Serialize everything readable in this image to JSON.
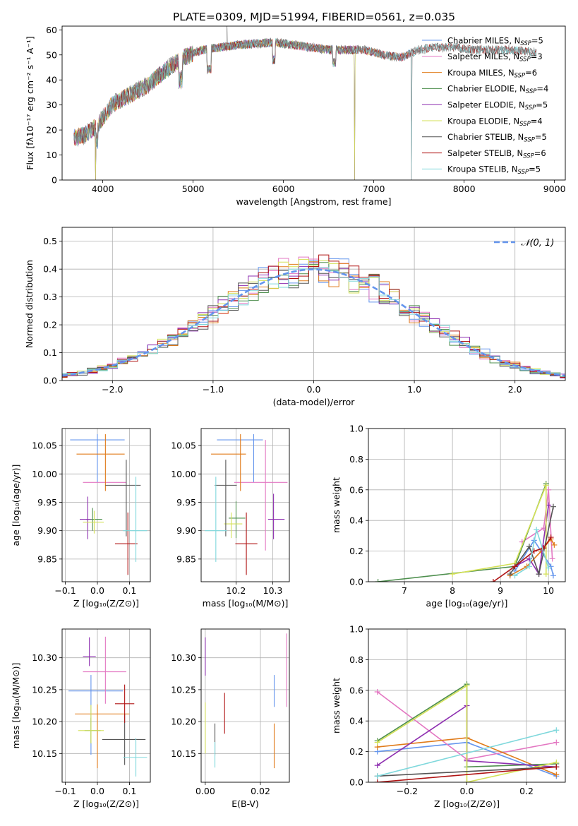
{
  "title": "PLATE=0309, MJD=51994, FIBERID=0561, z=0.035",
  "colors": {
    "Chabrier MILES": "#6495ed",
    "Salpeter MILES": "#e377c2",
    "Kroupa MILES": "#e07b1a",
    "Chabrier ELODIE": "#4e8f4e",
    "Salpeter ELODIE": "#8e2fb0",
    "Kroupa ELODIE": "#d4e157",
    "Chabrier STELIB": "#555555",
    "Salpeter STELIB": "#b01414",
    "Kroupa STELIB": "#7fd8dc"
  },
  "legend_spectrum": [
    {
      "label": "Chabrier MILES, N",
      "sub": "SSP",
      "suffix": "=5",
      "color": "#6495ed"
    },
    {
      "label": "Salpeter MILES, N",
      "sub": "SSP",
      "suffix": "=3",
      "color": "#e377c2"
    },
    {
      "label": "Kroupa MILES, N",
      "sub": "SSP",
      "suffix": "=6",
      "color": "#e07b1a"
    },
    {
      "label": "Chabrier ELODIE, N",
      "sub": "SSP",
      "suffix": "=4",
      "color": "#4e8f4e"
    },
    {
      "label": "Salpeter ELODIE, N",
      "sub": "SSP",
      "suffix": "=5",
      "color": "#8e2fb0"
    },
    {
      "label": "Kroupa ELODIE, N",
      "sub": "SSP",
      "suffix": "=4",
      "color": "#d4e157"
    },
    {
      "label": "Chabrier STELIB, N",
      "sub": "SSP",
      "suffix": "=5",
      "color": "#555555"
    },
    {
      "label": "Salpeter STELIB, N",
      "sub": "SSP",
      "suffix": "=6",
      "color": "#b01414"
    },
    {
      "label": "Kroupa STELIB, N",
      "sub": "SSP",
      "suffix": "=5",
      "color": "#7fd8dc"
    }
  ],
  "chart_data": [
    {
      "id": "spectrum",
      "type": "line",
      "xlabel": "wavelength [Angstrom, rest frame]",
      "ylabel": "Flux [fλ10⁻¹⁷ erg cm⁻² s⁻¹ A⁻¹]",
      "xlim": [
        3550,
        9120
      ],
      "ylim": [
        0,
        61.5
      ],
      "xticks": [
        4000,
        5000,
        6000,
        7000,
        8000,
        9000
      ],
      "yticks": [
        0,
        10,
        20,
        30,
        40,
        50,
        60
      ],
      "continuum_x": [
        3680,
        3800,
        3950,
        4100,
        4300,
        4500,
        4700,
        4900,
        5100,
        5300,
        5500,
        5700,
        5900,
        6100,
        6300,
        6500,
        6700,
        6900,
        7100,
        7300,
        7500,
        7700,
        7900,
        8100,
        8300,
        8500,
        8800
      ],
      "continuum_y": [
        17,
        18,
        22,
        30,
        34,
        38,
        44,
        49,
        52,
        53,
        54,
        54.5,
        55,
        54,
        53,
        52,
        52,
        52,
        50,
        49,
        52,
        53,
        53,
        52,
        52,
        52,
        51
      ],
      "drops_x": [
        3920,
        6790,
        7420
      ],
      "legend_loc": "upper right"
    },
    {
      "id": "residuals",
      "type": "line",
      "xlabel": "(data-model)/error",
      "ylabel": "Normed distribution",
      "xlim": [
        -2.5,
        2.5
      ],
      "ylim": [
        0,
        0.55
      ],
      "xticks": [
        -2,
        -1,
        0,
        1,
        2
      ],
      "yticks": [
        0.0,
        0.1,
        0.2,
        0.3,
        0.4,
        0.5
      ],
      "gaussian_label": "𝒩(0, 1)",
      "bin_width": 0.1,
      "legend_loc": "upper right"
    },
    {
      "id": "age-vs-Z",
      "type": "scatter",
      "xlabel": "Z [log₁₀(Z/Z⊙)]",
      "ylabel": "age  [log₁₀(age/yr)]",
      "xlim": [
        -0.11,
        0.165
      ],
      "ylim": [
        9.81,
        10.08
      ],
      "xticks": [
        -0.1,
        0.0,
        0.1
      ],
      "yticks": [
        9.85,
        9.9,
        9.95,
        10.0,
        10.05
      ],
      "series": [
        {
          "name": "Chabrier MILES",
          "x": 0.0,
          "y": 10.06,
          "xerr": [
            0.085,
            0.085
          ],
          "yerr": [
            0.075,
            0.01
          ]
        },
        {
          "name": "Salpeter MILES",
          "x": 0.045,
          "y": 9.985,
          "xerr": [
            0.09,
            0.045
          ],
          "yerr": [
            0.0,
            0.0
          ]
        },
        {
          "name": "Kroupa MILES",
          "x": 0.025,
          "y": 10.035,
          "xerr": [
            0.09,
            0.06
          ],
          "yerr": [
            0.065,
            0.035
          ]
        },
        {
          "name": "Chabrier ELODIE",
          "x": -0.015,
          "y": 9.92,
          "xerr": [
            0.02,
            0.03
          ],
          "yerr": [
            0.02,
            0.02
          ]
        },
        {
          "name": "Salpeter ELODIE",
          "x": -0.03,
          "y": 9.92,
          "xerr": [
            0.025,
            0.01
          ],
          "yerr": [
            0.035,
            0.04
          ]
        },
        {
          "name": "Kroupa ELODIE",
          "x": -0.01,
          "y": 9.915,
          "xerr": [
            0.035,
            0.03
          ],
          "yerr": [
            0.02,
            0.02
          ]
        },
        {
          "name": "Chabrier STELIB",
          "x": 0.09,
          "y": 9.98,
          "xerr": [
            0.065,
            0.045
          ],
          "yerr": [
            0.09,
            0.045
          ]
        },
        {
          "name": "Salpeter STELIB",
          "x": 0.095,
          "y": 9.877,
          "xerr": [
            0.04,
            0.03
          ],
          "yerr": [
            0.055,
            0.055
          ]
        },
        {
          "name": "Kroupa STELIB",
          "x": 0.12,
          "y": 9.9,
          "xerr": [
            0.04,
            0.035
          ],
          "yerr": [
            0.055,
            0.095
          ]
        }
      ]
    },
    {
      "id": "age-vs-mass",
      "type": "scatter",
      "xlabel": "mass [log₁₀(M/M⊙)]",
      "ylabel": "",
      "xlim": [
        10.105,
        10.345
      ],
      "ylim": [
        9.81,
        10.08
      ],
      "xticks": [
        10.2,
        10.3
      ],
      "yticks": [
        9.85,
        9.9,
        9.95,
        10.0,
        10.05
      ],
      "series": [
        {
          "name": "Chabrier MILES",
          "x": 10.248,
          "y": 10.06,
          "xerr": [
            0.1,
            0.025
          ],
          "yerr": [
            0.075,
            0.01
          ]
        },
        {
          "name": "Salpeter MILES",
          "x": 10.28,
          "y": 9.985,
          "xerr": [
            0.085,
            0.06
          ],
          "yerr": [
            0.12,
            0.075
          ]
        },
        {
          "name": "Kroupa MILES",
          "x": 10.212,
          "y": 10.035,
          "xerr": [
            0.08,
            0.015
          ],
          "yerr": [
            0.065,
            0.035
          ]
        },
        {
          "name": "Chabrier ELODIE",
          "x": 10.2,
          "y": 9.922,
          "xerr": [
            0.02,
            0.025
          ],
          "yerr": [
            0.035,
            0.03
          ]
        },
        {
          "name": "Salpeter ELODIE",
          "x": 10.302,
          "y": 9.92,
          "xerr": [
            0.015,
            0.03
          ],
          "yerr": [
            0.035,
            0.045
          ]
        },
        {
          "name": "Kroupa ELODIE",
          "x": 10.187,
          "y": 9.912,
          "xerr": [
            0.02,
            0.03
          ],
          "yerr": [
            0.025,
            0.02
          ]
        },
        {
          "name": "Chabrier STELIB",
          "x": 10.172,
          "y": 9.98,
          "xerr": [
            0.03,
            0.03
          ],
          "yerr": [
            0.09,
            0.045
          ]
        },
        {
          "name": "Salpeter STELIB",
          "x": 10.228,
          "y": 9.877,
          "xerr": [
            0.03,
            0.03
          ],
          "yerr": [
            0.055,
            0.055
          ]
        },
        {
          "name": "Kroupa STELIB",
          "x": 10.145,
          "y": 9.9,
          "xerr": [
            0.03,
            0.03
          ],
          "yerr": [
            0.055,
            0.095
          ]
        }
      ]
    },
    {
      "id": "weight-vs-age",
      "type": "line",
      "xlabel": "age  [log₁₀(age/yr)]",
      "ylabel": "mass weight",
      "xlim": [
        6.25,
        10.35
      ],
      "ylim": [
        0,
        1.0
      ],
      "xticks": [
        7,
        8,
        9,
        10
      ],
      "yticks": [
        0.0,
        0.2,
        0.4,
        0.6,
        0.8,
        1.0
      ],
      "series": [
        {
          "name": "Chabrier MILES",
          "x": [
            9.3,
            9.7,
            10.05,
            10.1
          ],
          "y": [
            0.07,
            0.27,
            0.1,
            0.04
          ]
        },
        {
          "name": "Salpeter MILES",
          "x": [
            9.45,
            9.9,
            10.0,
            10.08
          ],
          "y": [
            0.26,
            0.35,
            0.6,
            0.15
          ]
        },
        {
          "name": "Kroupa MILES",
          "x": [
            9.2,
            9.55,
            9.85,
            10.05,
            10.12
          ],
          "y": [
            0.04,
            0.1,
            0.2,
            0.28,
            0.24
          ]
        },
        {
          "name": "Chabrier ELODIE",
          "x": [
            6.45,
            9.3,
            9.95
          ],
          "y": [
            0.0,
            0.1,
            0.64
          ]
        },
        {
          "name": "Salpeter ELODIE",
          "x": [
            9.3,
            9.6,
            9.8,
            10.0
          ],
          "y": [
            0.1,
            0.15,
            0.05,
            0.5
          ]
        },
        {
          "name": "Kroupa ELODIE",
          "x": [
            8.0,
            9.3,
            9.95,
            9.95
          ],
          "y": [
            0.05,
            0.12,
            0.63,
            0.05
          ]
        },
        {
          "name": "Chabrier STELIB",
          "x": [
            9.2,
            9.6,
            9.8,
            10.1
          ],
          "y": [
            0.05,
            0.23,
            0.05,
            0.49
          ]
        },
        {
          "name": "Salpeter STELIB",
          "x": [
            8.85,
            9.3,
            9.7,
            9.9,
            10.05
          ],
          "y": [
            0.0,
            0.1,
            0.2,
            0.22,
            0.29
          ]
        },
        {
          "name": "Kroupa STELIB",
          "x": [
            9.3,
            9.6,
            9.75,
            10.0
          ],
          "y": [
            0.04,
            0.1,
            0.34,
            0.09
          ]
        }
      ]
    },
    {
      "id": "mass-vs-Z",
      "type": "scatter",
      "xlabel": "Z [log₁₀(Z/Z⊙)]",
      "ylabel": "mass [log₁₀(M/M⊙)]",
      "xlim": [
        -0.11,
        0.165
      ],
      "ylim": [
        10.105,
        10.345
      ],
      "xticks": [
        -0.1,
        0.0,
        0.1
      ],
      "yticks": [
        10.15,
        10.2,
        10.25,
        10.3
      ],
      "series": [
        {
          "name": "Chabrier MILES",
          "x": -0.02,
          "y": 10.248,
          "xerr": [
            0.07,
            0.1
          ],
          "yerr": [
            0.1,
            0.025
          ]
        },
        {
          "name": "Salpeter MILES",
          "x": 0.025,
          "y": 10.278,
          "xerr": [
            0.07,
            0.065
          ],
          "yerr": [
            0.05,
            0.055
          ]
        },
        {
          "name": "Kroupa MILES",
          "x": 0.0,
          "y": 10.212,
          "xerr": [
            0.07,
            0.1
          ],
          "yerr": [
            0.085,
            0.015
          ]
        },
        {
          "name": "Chabrier ELODIE",
          "x": -0.02,
          "y": 10.186,
          "xerr": [
            0.02,
            0.03
          ],
          "yerr": [
            0.02,
            0.02
          ]
        },
        {
          "name": "Salpeter ELODIE",
          "x": -0.025,
          "y": 10.302,
          "xerr": [
            0.02,
            0.02
          ],
          "yerr": [
            0.015,
            0.03
          ]
        },
        {
          "name": "Kroupa ELODIE",
          "x": -0.02,
          "y": 10.186,
          "xerr": [
            0.04,
            0.04
          ],
          "yerr": [
            0.02,
            0.04
          ]
        },
        {
          "name": "Chabrier STELIB",
          "x": 0.085,
          "y": 10.172,
          "xerr": [
            0.07,
            0.065
          ],
          "yerr": [
            0.04,
            0.04
          ]
        },
        {
          "name": "Salpeter STELIB",
          "x": 0.085,
          "y": 10.228,
          "xerr": [
            0.03,
            0.03
          ],
          "yerr": [
            0.03,
            0.03
          ]
        },
        {
          "name": "Kroupa STELIB",
          "x": 0.12,
          "y": 10.144,
          "xerr": [
            0.04,
            0.035
          ],
          "yerr": [
            0.03,
            0.03
          ]
        }
      ]
    },
    {
      "id": "mass-vs-ebv",
      "type": "scatter",
      "xlabel": "E(B-V)",
      "ylabel": "",
      "xlim": [
        -0.0015,
        0.0305
      ],
      "ylim": [
        10.105,
        10.345
      ],
      "xticks": [
        0.0,
        0.02
      ],
      "yticks": [
        10.15,
        10.2,
        10.25,
        10.3
      ],
      "series": [
        {
          "name": "Chabrier MILES",
          "x": 0.025,
          "y": 10.248,
          "xerr": [
            0,
            0
          ],
          "yerr": [
            0.025,
            0.025
          ]
        },
        {
          "name": "Salpeter MILES",
          "x": 0.0295,
          "y": 10.278,
          "xerr": [
            0,
            0
          ],
          "yerr": [
            0.055,
            0.06
          ]
        },
        {
          "name": "Kroupa MILES",
          "x": 0.025,
          "y": 10.162,
          "xerr": [
            0,
            0
          ],
          "yerr": [
            0.035,
            0.035
          ]
        },
        {
          "name": "Salpeter ELODIE",
          "x": 0.0,
          "y": 10.302,
          "xerr": [
            0,
            0
          ],
          "yerr": [
            0.03,
            0.03
          ]
        },
        {
          "name": "Kroupa ELODIE",
          "x": 0.0,
          "y": 10.19,
          "xerr": [
            0,
            0
          ],
          "yerr": [
            0.04,
            0.04
          ]
        },
        {
          "name": "Chabrier STELIB",
          "x": 0.0035,
          "y": 10.172,
          "xerr": [
            0,
            0
          ],
          "yerr": [
            0.025,
            0.025
          ]
        },
        {
          "name": "Salpeter STELIB",
          "x": 0.007,
          "y": 10.213,
          "xerr": [
            0,
            0
          ],
          "yerr": [
            0.032,
            0.032
          ]
        },
        {
          "name": "Kroupa STELIB",
          "x": 0.0035,
          "y": 10.148,
          "xerr": [
            0,
            0
          ],
          "yerr": [
            0.02,
            0.02
          ]
        }
      ]
    },
    {
      "id": "weight-vs-Z",
      "type": "line",
      "xlabel": "Z [log₁₀(Z/Z⊙)]",
      "ylabel": "mass weight",
      "xlim": [
        -0.33,
        0.33
      ],
      "ylim": [
        0,
        1.0
      ],
      "xticks": [
        -0.2,
        0.0,
        0.2
      ],
      "yticks": [
        0.0,
        0.2,
        0.4,
        0.6,
        0.8,
        1.0
      ],
      "series": [
        {
          "name": "Chabrier MILES",
          "x": [
            -0.3,
            0.0,
            0.3
          ],
          "y": [
            0.2,
            0.26,
            0.04
          ]
        },
        {
          "name": "Salpeter MILES",
          "x": [
            -0.3,
            0.0,
            0.3
          ],
          "y": [
            0.59,
            0.15,
            0.26
          ]
        },
        {
          "name": "Kroupa MILES",
          "x": [
            -0.3,
            0.0,
            0.3
          ],
          "y": [
            0.23,
            0.29,
            0.05
          ]
        },
        {
          "name": "Chabrier ELODIE",
          "x": [
            -0.3,
            0.0,
            0.0,
            0.3
          ],
          "y": [
            0.27,
            0.64,
            0.1,
            0.12
          ]
        },
        {
          "name": "Salpeter ELODIE",
          "x": [
            -0.3,
            0.0,
            0.0,
            0.3
          ],
          "y": [
            0.11,
            0.5,
            0.14,
            0.1
          ]
        },
        {
          "name": "Kroupa ELODIE",
          "x": [
            -0.3,
            0.0,
            0.0,
            0.3
          ],
          "y": [
            0.26,
            0.63,
            0.0,
            0.13
          ]
        },
        {
          "name": "Chabrier STELIB",
          "x": [
            -0.3,
            0.3
          ],
          "y": [
            0.04,
            0.1
          ]
        },
        {
          "name": "Salpeter STELIB",
          "x": [
            -0.3,
            0.3
          ],
          "y": [
            0.0,
            0.1
          ]
        },
        {
          "name": "Kroupa STELIB",
          "x": [
            -0.3,
            0.3
          ],
          "y": [
            0.04,
            0.34
          ]
        }
      ]
    }
  ]
}
